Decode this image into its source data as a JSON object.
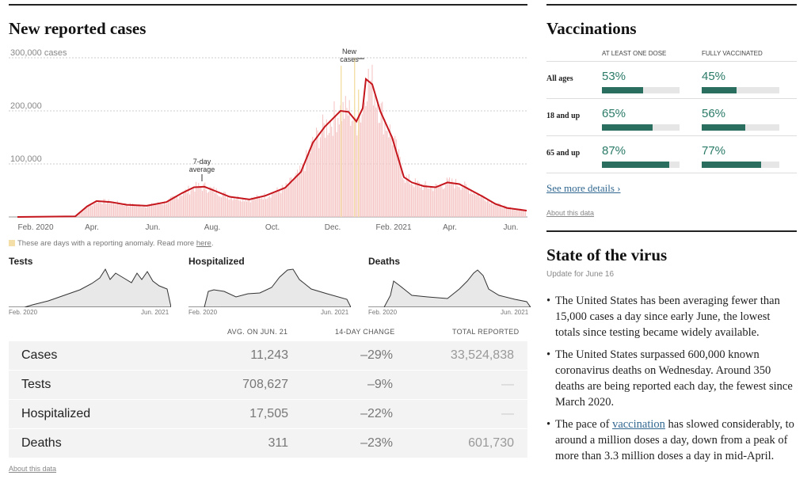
{
  "main": {
    "title": "New reported cases",
    "y_ticks": [
      "300,000 cases",
      "200,000",
      "100,000"
    ],
    "x_ticks": [
      "Feb. 2020",
      "Apr.",
      "Jun.",
      "Aug.",
      "Oct.",
      "Dec.",
      "Feb. 2021",
      "Apr.",
      "Jun."
    ],
    "annotation_new_cases": [
      "New",
      "cases"
    ],
    "annotation_avg": [
      "7-day",
      "average"
    ],
    "anomaly_note": "These are days with a reporting anomaly. Read more",
    "anomaly_link": "here",
    "anomaly_end": "."
  },
  "mini_charts": [
    {
      "title": "Tests",
      "start": "Feb. 2020",
      "end": "Jun. 2021"
    },
    {
      "title": "Hospitalized",
      "start": "Feb. 2020",
      "end": "Jun. 2021"
    },
    {
      "title": "Deaths",
      "start": "Feb. 2020",
      "end": "Jun. 2021"
    }
  ],
  "table": {
    "headers": {
      "avg": "AVG. ON JUN. 21",
      "change": "14-DAY CHANGE",
      "total": "TOTAL REPORTED"
    },
    "rows": [
      {
        "name": "Cases",
        "avg": "11,243",
        "change": "–29%",
        "total": "33,524,838"
      },
      {
        "name": "Tests",
        "avg": "708,627",
        "change": "–9%",
        "total": "—"
      },
      {
        "name": "Hospitalized",
        "avg": "17,505",
        "change": "–22%",
        "total": "—"
      },
      {
        "name": "Deaths",
        "avg": "311",
        "change": "–23%",
        "total": "601,730"
      }
    ],
    "about": "About this data"
  },
  "vaccinations": {
    "title": "Vaccinations",
    "col1": "AT LEAST ONE DOSE",
    "col2": "FULLY VACCINATED",
    "rows": [
      {
        "label": "All ages",
        "one": "53%",
        "one_val": 0.53,
        "full": "45%",
        "full_val": 0.45
      },
      {
        "label": "18 and up",
        "one": "65%",
        "one_val": 0.65,
        "full": "56%",
        "full_val": 0.56
      },
      {
        "label": "65 and up",
        "one": "87%",
        "one_val": 0.87,
        "full": "77%",
        "full_val": 0.77
      }
    ],
    "details_link": "See more details ›",
    "about": "About this data"
  },
  "state": {
    "title": "State of the virus",
    "update": "Update for June 16",
    "bullet1": "The United States has been averaging fewer than 15,000 cases a day since early June, the lowest totals since testing became widely available.",
    "bullet2": "The United States surpassed 600,000 known coronavirus deaths on Wednesday. Around 350 deaths are being reported each day, the fewest since March 2020.",
    "bullet3_pre": "The pace of",
    "bullet3_link": "vaccination",
    "bullet3_post": "has slowed considerably, to around a million doses a day, down from a peak of more than 3.3 million doses a day in mid-April."
  },
  "colors": {
    "avg_line": "#c4161c",
    "bars": "#f6c6c6",
    "anomaly": "#f5dfa8",
    "vacc": "#2a6e5f"
  }
}
